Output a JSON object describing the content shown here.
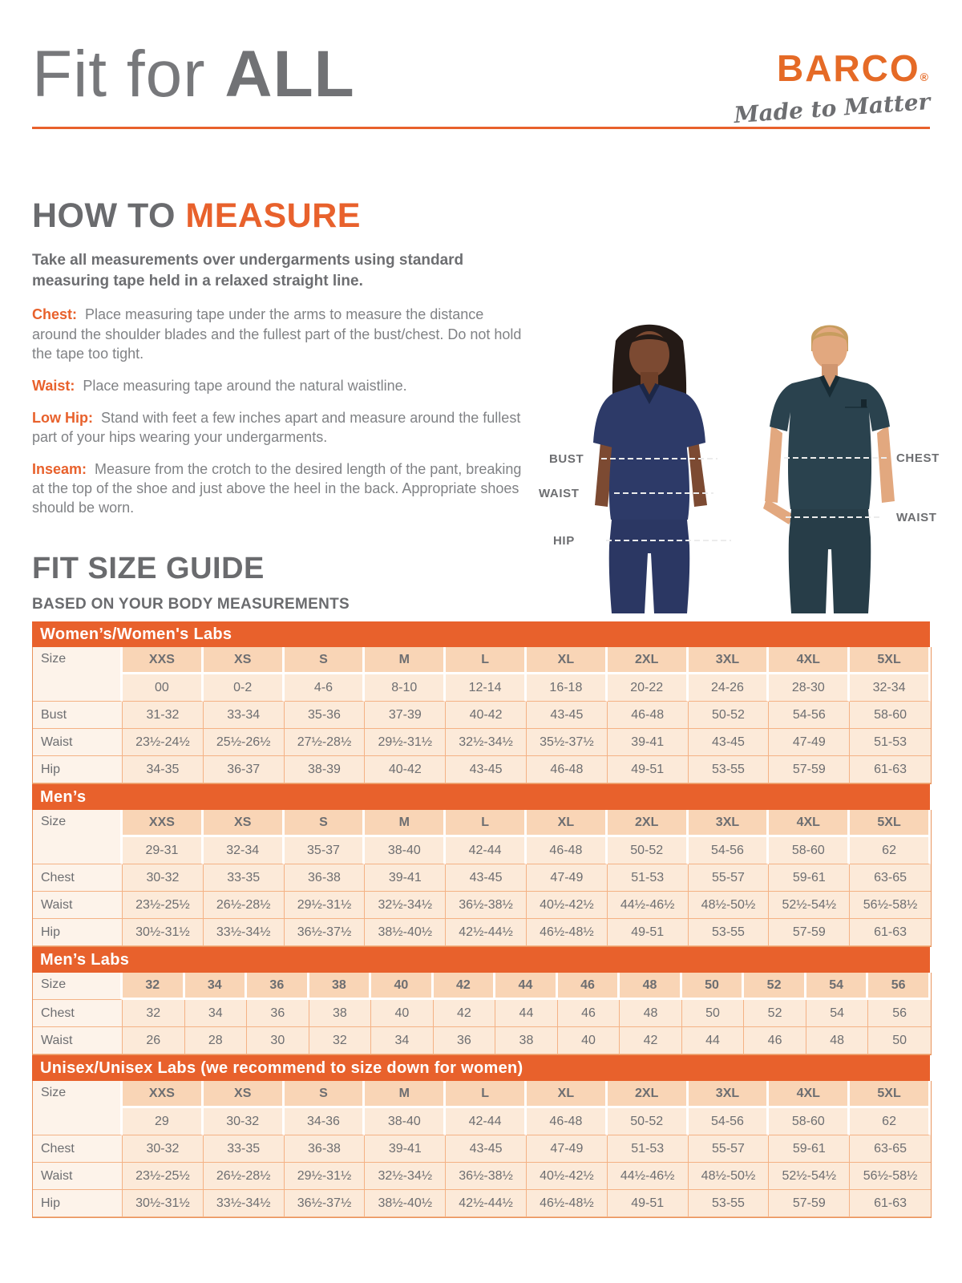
{
  "header": {
    "title_light": "Fit for",
    "title_bold": "ALL"
  },
  "brand": {
    "name": "BARCO",
    "reg": "®",
    "tagline": "Made to Matter"
  },
  "how_to": {
    "heading_part1": "HOW TO",
    "heading_part2": "MEASURE",
    "intro": "Take all measurements over undergarments using standard measuring tape held in a relaxed straight line.",
    "items": [
      {
        "label": "Chest:",
        "text": "Place measuring tape under the arms to measure the distance around the shoulder blades and the fullest part of the bust/chest. Do not hold the tape too tight."
      },
      {
        "label": "Waist:",
        "text": "Place measuring tape around the natural waistline."
      },
      {
        "label": "Low Hip:",
        "text": "Stand with feet a few inches apart and measure around the fullest part of your hips wearing your undergarments."
      },
      {
        "label": "Inseam:",
        "text": "Measure from the crotch to the desired length of the pant, breaking at the top of the shoe and just above the heel in the back. Appropriate shoes should be worn."
      }
    ]
  },
  "figure": {
    "labels": [
      "BUST",
      "WAIST",
      "HIP",
      "CHEST",
      "WAIST"
    ]
  },
  "size_guide": {
    "heading": "FIT SIZE GUIDE",
    "subheading": "BASED ON YOUR BODY MEASUREMENTS",
    "tables": [
      {
        "title": "Women’s/Women's Labs",
        "corner_label": "Size",
        "sizes": [
          "XXS",
          "XS",
          "S",
          "M",
          "L",
          "XL",
          "2XL",
          "3XL",
          "4XL",
          "5XL"
        ],
        "secondary_sizes": [
          "00",
          "0-2",
          "4-6",
          "8-10",
          "12-14",
          "16-18",
          "20-22",
          "24-26",
          "28-30",
          "32-34"
        ],
        "rows": [
          {
            "label": "Bust",
            "values": [
              "31-32",
              "33-34",
              "35-36",
              "37-39",
              "40-42",
              "43-45",
              "46-48",
              "50-52",
              "54-56",
              "58-60"
            ]
          },
          {
            "label": "Waist",
            "values": [
              "23½-24½",
              "25½-26½",
              "27½-28½",
              "29½-31½",
              "32½-34½",
              "35½-37½",
              "39-41",
              "43-45",
              "47-49",
              "51-53"
            ]
          },
          {
            "label": "Hip",
            "values": [
              "34-35",
              "36-37",
              "38-39",
              "40-42",
              "43-45",
              "46-48",
              "49-51",
              "53-55",
              "57-59",
              "61-63"
            ]
          }
        ]
      },
      {
        "title": "Men’s",
        "corner_label": "Size",
        "sizes": [
          "XXS",
          "XS",
          "S",
          "M",
          "L",
          "XL",
          "2XL",
          "3XL",
          "4XL",
          "5XL"
        ],
        "secondary_sizes": [
          "29-31",
          "32-34",
          "35-37",
          "38-40",
          "42-44",
          "46-48",
          "50-52",
          "54-56",
          "58-60",
          "62"
        ],
        "rows": [
          {
            "label": "Chest",
            "values": [
              "30-32",
              "33-35",
              "36-38",
              "39-41",
              "43-45",
              "47-49",
              "51-53",
              "55-57",
              "59-61",
              "63-65"
            ]
          },
          {
            "label": "Waist",
            "values": [
              "23½-25½",
              "26½-28½",
              "29½-31½",
              "32½-34½",
              "36½-38½",
              "40½-42½",
              "44½-46½",
              "48½-50½",
              "52½-54½",
              "56½-58½"
            ]
          },
          {
            "label": "Hip",
            "values": [
              "30½-31½",
              "33½-34½",
              "36½-37½",
              "38½-40½",
              "42½-44½",
              "46½-48½",
              "49-51",
              "53-55",
              "57-59",
              "61-63"
            ]
          }
        ]
      },
      {
        "title": "Men’s Labs",
        "corner_label": "Size",
        "sizes": [
          "32",
          "34",
          "36",
          "38",
          "40",
          "42",
          "44",
          "46",
          "48",
          "50",
          "52",
          "54",
          "56"
        ],
        "secondary_sizes": null,
        "rows": [
          {
            "label": "Chest",
            "values": [
              "32",
              "34",
              "36",
              "38",
              "40",
              "42",
              "44",
              "46",
              "48",
              "50",
              "52",
              "54",
              "56"
            ]
          },
          {
            "label": "Waist",
            "values": [
              "26",
              "28",
              "30",
              "32",
              "34",
              "36",
              "38",
              "40",
              "42",
              "44",
              "46",
              "48",
              "50"
            ]
          }
        ]
      },
      {
        "title": "Unisex/Unisex Labs (we recommend to size down for women)",
        "corner_label": "Size",
        "sizes": [
          "XXS",
          "XS",
          "S",
          "M",
          "L",
          "XL",
          "2XL",
          "3XL",
          "4XL",
          "5XL"
        ],
        "secondary_sizes": [
          "29",
          "30-32",
          "34-36",
          "38-40",
          "42-44",
          "46-48",
          "50-52",
          "54-56",
          "58-60",
          "62"
        ],
        "rows": [
          {
            "label": "Chest",
            "values": [
              "30-32",
              "33-35",
              "36-38",
              "39-41",
              "43-45",
              "47-49",
              "51-53",
              "55-57",
              "59-61",
              "63-65"
            ]
          },
          {
            "label": "Waist",
            "values": [
              "23½-25½",
              "26½-28½",
              "29½-31½",
              "32½-34½",
              "36½-38½",
              "40½-42½",
              "44½-46½",
              "48½-50½",
              "52½-54½",
              "56½-58½"
            ]
          },
          {
            "label": "Hip",
            "values": [
              "30½-31½",
              "33½-34½",
              "36½-37½",
              "38½-40½",
              "42½-44½",
              "46½-48½",
              "49-51",
              "53-55",
              "57-59",
              "61-63"
            ]
          }
        ]
      }
    ]
  }
}
